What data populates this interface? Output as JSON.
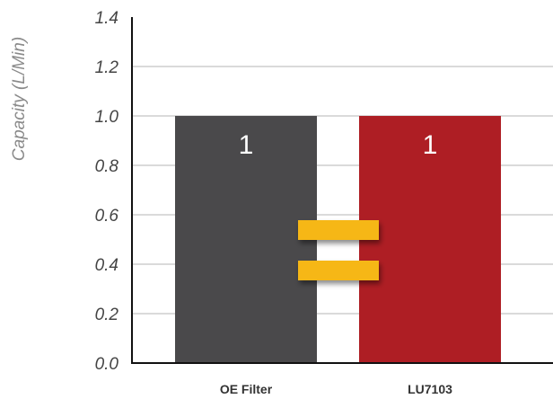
{
  "chart_data": {
    "type": "bar",
    "categories": [
      "OE Filter",
      "LU7103"
    ],
    "values": [
      1,
      1
    ],
    "data_labels": [
      "1",
      "1"
    ],
    "title": "",
    "xlabel": "",
    "ylabel": "Capacity (L/Min)",
    "ylim": [
      0,
      1.4
    ],
    "yticks": [
      "0.0",
      "0.2",
      "0.4",
      "0.6",
      "0.8",
      "1.0",
      "1.2",
      "1.4"
    ],
    "grid": true,
    "bar_colors": [
      "#4a494b",
      "#ae1e24"
    ],
    "annotation": {
      "symbol": "equals-sign",
      "color": "#f6b719"
    }
  }
}
